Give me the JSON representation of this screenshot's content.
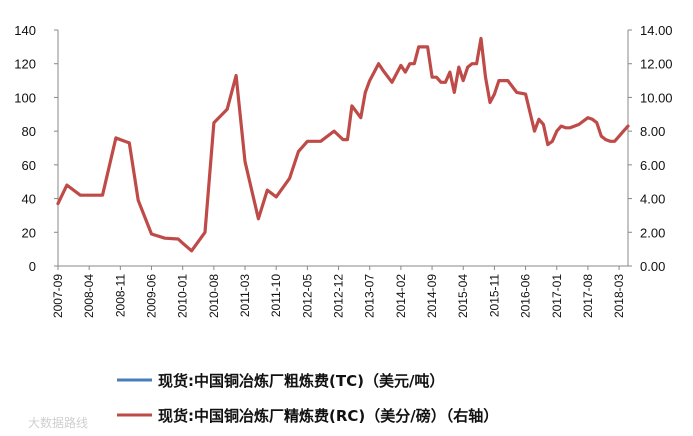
{
  "chart_data": {
    "type": "line",
    "x_dates": [
      "2007-09",
      "2007-11",
      "2008-02",
      "2008-04",
      "2008-07",
      "2008-10",
      "2008-11",
      "2009-01",
      "2009-03",
      "2009-06",
      "2009-09",
      "2009-12",
      "2010-01",
      "2010-03",
      "2010-06",
      "2010-08",
      "2010-11",
      "2011-01",
      "2011-03",
      "2011-06",
      "2011-08",
      "2011-10",
      "2012-01",
      "2012-03",
      "2012-05",
      "2012-08",
      "2012-11",
      "2013-01",
      "2013-02",
      "2013-03",
      "2013-05",
      "2013-06",
      "2013-07",
      "2013-09",
      "2013-10",
      "2013-12",
      "2014-02",
      "2014-03",
      "2014-04",
      "2014-05",
      "2014-06",
      "2014-07",
      "2014-08",
      "2014-09",
      "2014-10",
      "2014-11",
      "2014-12",
      "2015-01",
      "2015-02",
      "2015-03",
      "2015-04",
      "2015-05",
      "2015-06",
      "2015-07",
      "2015-08",
      "2015-09",
      "2015-10",
      "2015-11",
      "2015-12",
      "2016-02",
      "2016-04",
      "2016-06",
      "2016-08",
      "2016-09",
      "2016-10",
      "2016-11",
      "2016-12",
      "2017-01",
      "2017-02",
      "2017-03",
      "2017-04",
      "2017-06",
      "2017-08",
      "2017-09",
      "2017-10",
      "2017-11",
      "2017-12",
      "2018-01",
      "2018-02",
      "2018-03",
      "2018-04",
      "2018-05"
    ],
    "x_tick_labels": [
      "2007-09",
      "2008-04",
      "2008-11",
      "2009-06",
      "2010-01",
      "2010-08",
      "2011-03",
      "2011-10",
      "2012-05",
      "2012-12",
      "2013-07",
      "2014-02",
      "2014-09",
      "2015-04",
      "2015-11",
      "2016-06",
      "2017-01",
      "2017-08",
      "2018-03"
    ],
    "y_left": {
      "ticks": [
        "0",
        "20",
        "40",
        "60",
        "80",
        "100",
        "120",
        "140"
      ],
      "ylim": [
        0,
        140
      ]
    },
    "y_right": {
      "ticks": [
        "0.00",
        "2.00",
        "4.00",
        "6.00",
        "8.00",
        "10.00",
        "12.00",
        "14.00"
      ],
      "ylim": [
        0,
        14
      ]
    },
    "series": [
      {
        "name": "现货:中国铜冶炼厂粗炼费(TC)（美元/吨）",
        "color": "#4a7ebb",
        "axis": "left",
        "values": []
      },
      {
        "name": "现货:中国铜冶炼厂精炼费(RC)（美分/磅）（右轴）",
        "color": "#be4b48",
        "axis": "right",
        "values": [
          3.7,
          4.8,
          4.2,
          4.2,
          4.2,
          7.6,
          7.5,
          7.3,
          3.9,
          1.9,
          1.65,
          1.6,
          1.35,
          0.9,
          2.0,
          8.5,
          9.3,
          11.3,
          6.2,
          2.8,
          4.5,
          4.1,
          5.2,
          6.8,
          7.4,
          7.4,
          8.0,
          7.5,
          7.5,
          9.5,
          8.8,
          10.3,
          11.0,
          12.0,
          11.6,
          10.9,
          11.9,
          11.5,
          12.0,
          12.0,
          13.0,
          13.0,
          13.0,
          11.2,
          11.2,
          10.9,
          10.9,
          11.5,
          10.3,
          11.8,
          11.0,
          11.8,
          12.0,
          12.0,
          13.5,
          11.2,
          9.7,
          10.2,
          11.0,
          11.0,
          10.3,
          10.2,
          8.0,
          8.7,
          8.4,
          7.2,
          7.4,
          8.0,
          8.3,
          8.2,
          8.2,
          8.4,
          8.8,
          8.7,
          8.5,
          7.7,
          7.5,
          7.4,
          7.4,
          7.7,
          8.0,
          8.3
        ]
      }
    ],
    "grid": false,
    "legend_position": "bottom"
  },
  "watermark": "大数据路线"
}
